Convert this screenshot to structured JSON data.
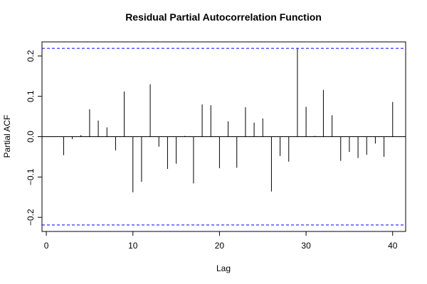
{
  "chart_data": {
    "type": "bar",
    "title": "Residual Partial Autocorrelation Function",
    "xlabel": "Lag",
    "ylabel": "Partial ACF",
    "xlim": [
      -0.5,
      41.5
    ],
    "ylim": [
      -0.235,
      0.235
    ],
    "x_ticks": [
      0,
      10,
      20,
      30,
      40
    ],
    "y_ticks": [
      -0.2,
      -0.1,
      0.0,
      0.1,
      0.2
    ],
    "x_tick_labels": [
      "0",
      "10",
      "20",
      "30",
      "40"
    ],
    "y_tick_labels": [
      "−0.2",
      "−0.1",
      "0.0",
      "0.1",
      "0.2"
    ],
    "confidence_bounds": [
      0.219,
      -0.219
    ],
    "confidence_color": "#0000ff",
    "series": [
      {
        "lags": [
          1,
          2,
          3,
          4,
          5,
          6,
          7,
          8,
          9,
          10,
          11,
          12,
          13,
          14,
          15,
          16,
          17,
          18,
          19,
          20,
          21,
          22,
          23,
          24,
          25,
          26,
          27,
          28,
          29,
          30,
          31,
          32,
          33,
          34,
          35,
          36,
          37,
          38,
          39,
          40
        ],
        "values": [
          0.0,
          -0.046,
          -0.006,
          0.004,
          0.068,
          0.04,
          0.023,
          -0.034,
          0.112,
          -0.138,
          -0.112,
          0.13,
          -0.025,
          -0.08,
          -0.067,
          0.002,
          -0.116,
          0.08,
          0.078,
          -0.078,
          0.038,
          -0.077,
          0.073,
          0.035,
          0.045,
          -0.136,
          -0.048,
          -0.062,
          0.218,
          0.074,
          0.002,
          0.116,
          0.053,
          -0.06,
          -0.038,
          -0.053,
          -0.045,
          -0.017,
          -0.05,
          0.086
        ]
      }
    ]
  }
}
